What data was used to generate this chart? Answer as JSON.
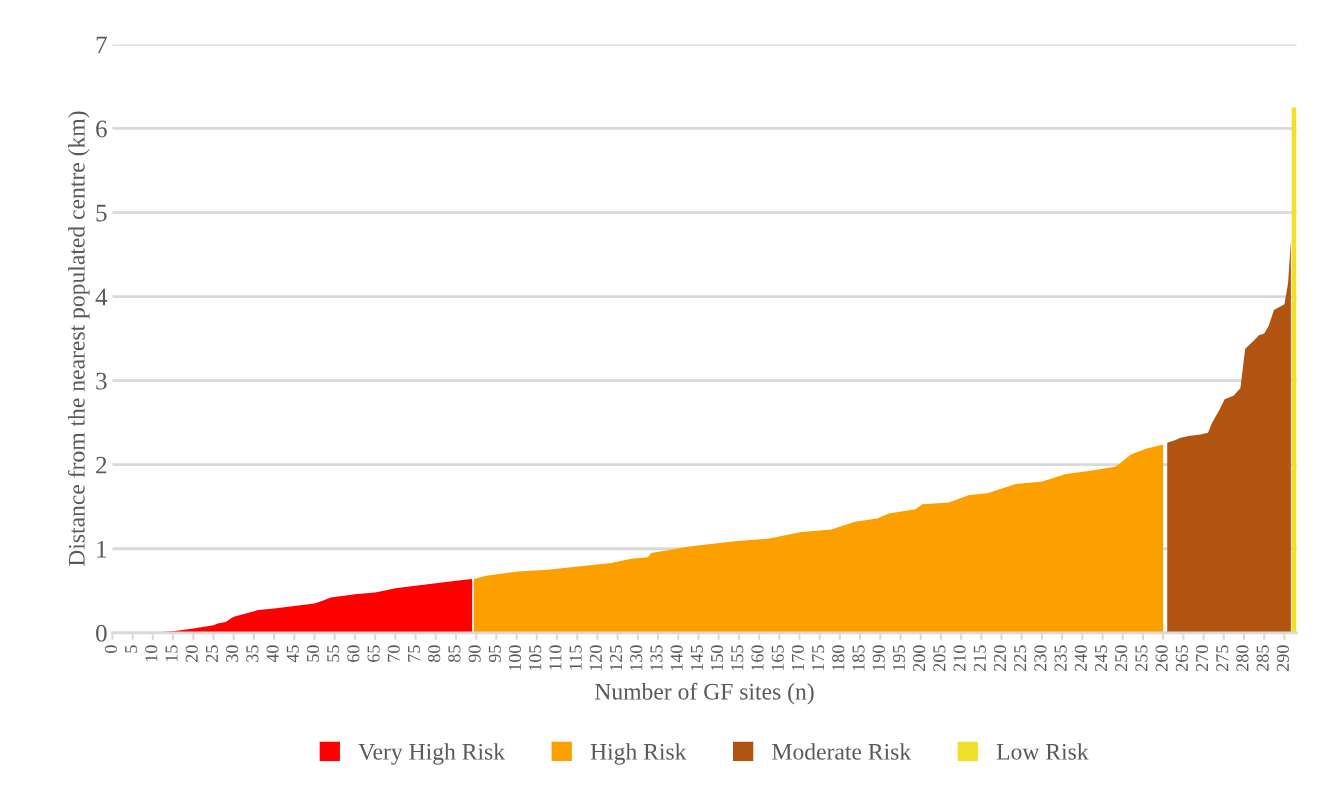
{
  "chart_data": {
    "type": "area",
    "xlabel": "Number of GF sites (n)",
    "ylabel": "Distance from the nearest populated centre (km)",
    "xlim": [
      0,
      293
    ],
    "xticks": [
      0,
      5,
      10,
      15,
      20,
      25,
      30,
      35,
      40,
      45,
      50,
      55,
      60,
      65,
      70,
      75,
      80,
      85,
      90,
      95,
      100,
      105,
      110,
      115,
      120,
      125,
      130,
      135,
      140,
      145,
      150,
      155,
      160,
      165,
      170,
      175,
      180,
      185,
      190,
      195,
      200,
      205,
      210,
      215,
      220,
      225,
      230,
      235,
      240,
      245,
      250,
      255,
      260,
      265,
      270,
      275,
      280,
      285,
      290
    ],
    "ylim": [
      0,
      7
    ],
    "yticks": [
      0,
      1,
      2,
      3,
      4,
      5,
      6,
      7
    ],
    "grid": "y",
    "legend": "bottom",
    "series": [
      {
        "name": "Very High Risk",
        "color": "#ff0000",
        "x": [
          0,
          9.3,
          15,
          20,
          25,
          26,
          28,
          30,
          33,
          36,
          40,
          45,
          50,
          52,
          54,
          60,
          65,
          68,
          70,
          75,
          80,
          85,
          89
        ],
        "values": [
          0,
          0,
          0.02,
          0.05,
          0.09,
          0.11,
          0.13,
          0.19,
          0.23,
          0.27,
          0.29,
          0.32,
          0.35,
          0.38,
          0.42,
          0.46,
          0.48,
          0.51,
          0.53,
          0.56,
          0.59,
          0.62,
          0.64
        ]
      },
      {
        "name": "High Risk",
        "color": "#fca000",
        "x": [
          89.4,
          92.5,
          100.3,
          107.7,
          115.2,
          123.4,
          128.4,
          132.5,
          133.3,
          143.2,
          154,
          162.2,
          170.5,
          177.9,
          183.7,
          189.2,
          192.1,
          198.7,
          200.4,
          207,
          212,
          216.5,
          223.5,
          230.1,
          235.9,
          242.5,
          248.3,
          252,
          255.7,
          260
        ],
        "values": [
          0.64,
          0.68,
          0.73,
          0.75,
          0.79,
          0.83,
          0.88,
          0.9,
          0.95,
          1.03,
          1.09,
          1.12,
          1.2,
          1.23,
          1.32,
          1.36,
          1.42,
          1.47,
          1.53,
          1.55,
          1.64,
          1.66,
          1.77,
          1.8,
          1.89,
          1.93,
          1.98,
          2.12,
          2.19,
          2.24
        ]
      },
      {
        "name": "Moderate Risk",
        "color": "#b15412",
        "x": [
          261,
          262.9,
          264.3,
          266.3,
          269.2,
          271.1,
          272.1,
          274,
          275.2,
          277.4,
          279.1,
          280.3,
          282.7,
          283.7,
          285,
          286.1,
          287.4,
          290,
          290.9,
          291.6
        ],
        "values": [
          2.26,
          2.29,
          2.32,
          2.34,
          2.36,
          2.38,
          2.5,
          2.66,
          2.78,
          2.82,
          2.91,
          3.38,
          3.49,
          3.54,
          3.56,
          3.65,
          3.84,
          3.91,
          4.16,
          4.67
        ]
      },
      {
        "name": "Low Risk",
        "color": "#f0e02a",
        "x": [
          291.8,
          293
        ],
        "values": [
          6.25,
          6.25
        ]
      }
    ]
  }
}
